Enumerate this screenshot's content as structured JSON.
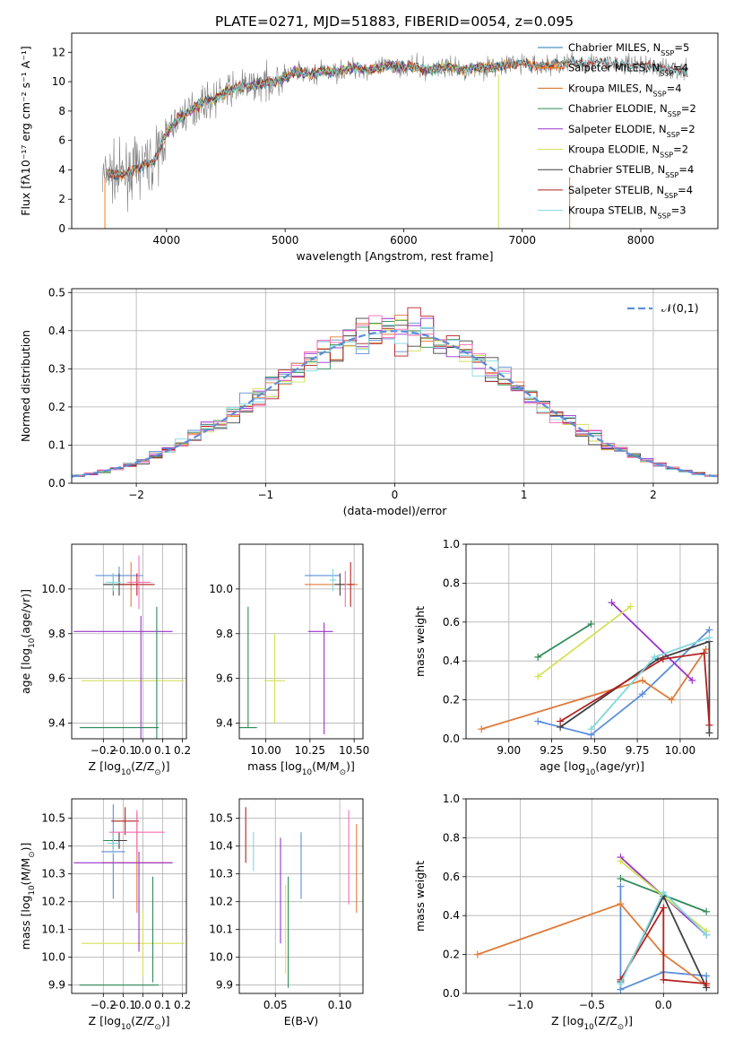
{
  "figure": {
    "title": "PLATE=0271, MJD=51883, FIBERID=0054, z=0.095"
  },
  "chart_data": [
    {
      "id": "spectrum",
      "type": "line",
      "xlabel": "wavelength [Angstrom, rest frame]",
      "ylabel": "Flux [fλ10⁻¹⁷ erg cm⁻² s⁻¹ A⁻¹]",
      "xlim": [
        3200,
        8650
      ],
      "ylim": [
        0,
        13.3
      ],
      "xticks": [
        4000,
        5000,
        6000,
        7000,
        8000
      ],
      "yticks": [
        0,
        2,
        4,
        6,
        8,
        10,
        12
      ],
      "grid": false,
      "legend_position": "right",
      "data_series": {
        "name": "",
        "color": "#808080",
        "x": [
          3460,
          3500,
          3600,
          3700,
          3800,
          3900,
          4000,
          4100,
          4200,
          4300,
          4400,
          4500,
          4600,
          4700,
          4800,
          4900,
          5000,
          5100,
          5200,
          5300,
          5400,
          5500,
          5600,
          5700,
          5800,
          5900,
          6000,
          6100,
          6200,
          6300,
          6400,
          6500,
          6600,
          6700,
          6800,
          6900,
          7000,
          7100,
          7200,
          7300,
          7400,
          7600,
          7800,
          8000,
          8200,
          8400
        ],
        "y": [
          3.4,
          3.8,
          3.6,
          3.9,
          4.3,
          4.6,
          6.5,
          7.5,
          8.0,
          8.6,
          8.8,
          9.3,
          9.6,
          9.7,
          9.9,
          10.0,
          10.3,
          10.7,
          10.5,
          10.7,
          10.6,
          10.8,
          11.0,
          10.8,
          10.9,
          11.1,
          11.0,
          11.0,
          10.8,
          10.9,
          11.0,
          10.8,
          10.9,
          11.0,
          11.0,
          11.2,
          11.3,
          11.1,
          11.1,
          11.2,
          11.3,
          11.3,
          11.2,
          11.1,
          10.9,
          10.7
        ]
      },
      "models": [
        {
          "name": "Chabrier MILES, N$_{SSP}$=5",
          "color": "#1f77b4",
          "x_range": [
            3500,
            7400
          ]
        },
        {
          "name": "Salpeter MILES, N$_{SSP}$=4",
          "color": "#ff7f0e",
          "x_range": [
            3500,
            7400
          ]
        },
        {
          "name": "Kroupa MILES, N$_{SSP}$=4",
          "color": "#d2691e",
          "x_range": [
            3500,
            7400
          ]
        },
        {
          "name": "Chabrier ELODIE, N$_{SSP}$=2",
          "color": "#2e8b57",
          "x_range": [
            3900,
            6800
          ]
        },
        {
          "name": "Salpeter ELODIE, N$_{SSP}$=2",
          "color": "#9932cc",
          "x_range": [
            3900,
            6800
          ]
        },
        {
          "name": "Kroupa ELODIE, N$_{SSP}$=2",
          "color": "#d4e157",
          "x_range": [
            3900,
            6800
          ]
        },
        {
          "name": "Chabrier STELIB, N$_{SSP}$=4",
          "color": "#404040",
          "x_range": [
            3500,
            8400
          ]
        },
        {
          "name": "Salpeter STELIB, N$_{SSP}$=4",
          "color": "#b22222",
          "x_range": [
            3500,
            8400
          ]
        },
        {
          "name": "Kroupa STELIB, N$_{SSP}$=3",
          "color": "#80d8e0",
          "x_range": [
            3500,
            8400
          ]
        }
      ]
    },
    {
      "id": "residuals",
      "type": "line",
      "xlabel": "(data-model)/error",
      "ylabel": "Normed distribution",
      "xlim": [
        -2.5,
        2.5
      ],
      "ylim": [
        0,
        0.51
      ],
      "xticks": [
        -2,
        -1,
        0,
        1,
        2
      ],
      "yticks": [
        0.0,
        0.1,
        0.2,
        0.3,
        0.4,
        0.5
      ],
      "grid": true,
      "legend": "$\\mathcal{N}(0,1)$",
      "legend_position": "top-right",
      "normal_color": "#5b8fd9",
      "bin_width": 0.1
    },
    {
      "id": "age_vs_Z",
      "type": "scatter",
      "xlabel": "Z [log$_{10}$(Z/Z$_\\odot$)]",
      "ylabel": "age  [log$_{10}$(age/yr)]",
      "xlim": [
        -0.36,
        0.22
      ],
      "ylim": [
        9.33,
        10.2
      ],
      "xticks": [
        -0.2,
        -0.1,
        0.0,
        0.1,
        0.2
      ],
      "yticks": [
        9.4,
        9.6,
        9.8,
        10.0
      ],
      "grid": true,
      "errorbars": [
        {
          "color": "#5b8fd9",
          "x": -0.12,
          "y": 10.06,
          "xerr": 0.12,
          "yerr": 0.04
        },
        {
          "color": "#e07b39",
          "x": -0.06,
          "y": 10.02,
          "xerr": 0.1,
          "yerr": 0.1
        },
        {
          "color": "#2e8b57",
          "x": -0.15,
          "y": 10.02,
          "xerr": 0.05,
          "yerr": 0.05
        },
        {
          "color": "#9932cc",
          "x": -0.1,
          "y": 9.81,
          "xerr": 0.25,
          "yerr": 0.0
        },
        {
          "color": "#d4e157",
          "x": -0.05,
          "y": 9.59,
          "xerr": 0.26,
          "yerr": 0.0
        },
        {
          "color": "#404040",
          "x": -0.12,
          "y": 10.02,
          "xerr": 0.08,
          "yerr": 0.05
        },
        {
          "color": "#b22222",
          "x": -0.03,
          "y": 10.02,
          "xerr": 0.09,
          "yerr": 0.05
        },
        {
          "color": "#80d8e0",
          "x": -0.15,
          "y": 10.03,
          "xerr": 0.04,
          "yerr": 0.04
        },
        {
          "color": "#2e8b57",
          "x": -0.12,
          "y": 9.38,
          "xerr": 0.2,
          "yerr": 0.0
        },
        {
          "color": "#ff69b4",
          "x": -0.02,
          "y": 10.03,
          "xerr": 0.06,
          "yerr": 0.12
        },
        {
          "color": "#2e8b57",
          "x": 0.07,
          "y": 9.6,
          "xerr": 0.0,
          "yerr": 0.32
        },
        {
          "color": "#9932cc",
          "x": -0.01,
          "y": 9.6,
          "xerr": 0.0,
          "yerr": 0.28
        }
      ]
    },
    {
      "id": "age_vs_mass",
      "type": "scatter",
      "xlabel": "mass [log$_{10}$(M/M$_\\odot$)]",
      "ylabel": "",
      "xlim": [
        9.85,
        10.55
      ],
      "ylim": [
        9.33,
        10.2
      ],
      "xticks": [
        10.0,
        10.25,
        10.5
      ],
      "yticks": [
        9.4,
        9.6,
        9.8,
        10.0
      ],
      "grid": true,
      "errorbars": [
        {
          "color": "#5b8fd9",
          "x": 10.32,
          "y": 10.06,
          "xerr": 0.1,
          "yerr": 0.0
        },
        {
          "color": "#e07b39",
          "x": 10.37,
          "y": 10.02,
          "xerr": 0.15,
          "yerr": 0.0
        },
        {
          "color": "#2e8b57",
          "x": 9.9,
          "y": 9.38,
          "xerr": 0.0,
          "yerr": 0.0
        },
        {
          "color": "#9932cc",
          "x": 10.31,
          "y": 9.81,
          "xerr": 0.07,
          "yerr": 0.0
        },
        {
          "color": "#d4e157",
          "x": 10.05,
          "y": 9.59,
          "xerr": 0.06,
          "yerr": 0.0
        },
        {
          "color": "#404040",
          "x": 10.42,
          "y": 10.02,
          "xerr": 0.03,
          "yerr": 0.05
        },
        {
          "color": "#b22222",
          "x": 10.48,
          "y": 10.02,
          "xerr": 0.02,
          "yerr": 0.1
        },
        {
          "color": "#80d8e0",
          "x": 10.38,
          "y": 10.04,
          "xerr": 0.02,
          "yerr": 0.05
        },
        {
          "color": "#ff69b4",
          "x": 10.45,
          "y": 10.0,
          "xerr": 0.0,
          "yerr": 0.08
        },
        {
          "color": "#2e8b57",
          "x": 9.9,
          "y": 9.65,
          "xerr": 0.0,
          "yerr": 0.27
        },
        {
          "color": "#d4e157",
          "x": 10.05,
          "y": 9.6,
          "xerr": 0.0,
          "yerr": 0.2
        },
        {
          "color": "#9932cc",
          "x": 10.33,
          "y": 9.6,
          "xerr": 0.0,
          "yerr": 0.25
        },
        {
          "color": "#2e8b57",
          "x": 9.9,
          "y": 9.38,
          "xerr": 0.05,
          "yerr": 0.0
        }
      ]
    },
    {
      "id": "weight_vs_age",
      "type": "line",
      "xlabel": "age  [log$_{10}$(age/yr)]",
      "ylabel": "mass weight",
      "xlim": [
        8.75,
        10.22
      ],
      "ylim": [
        0,
        1.0
      ],
      "xticks": [
        9.0,
        9.25,
        9.5,
        9.75,
        10.0
      ],
      "yticks": [
        0.0,
        0.2,
        0.4,
        0.6,
        0.8,
        1.0
      ],
      "grid": true,
      "series": [
        {
          "color": "#5b8fd9",
          "x": [
            9.17,
            9.48,
            9.78,
            10.17
          ],
          "y": [
            0.09,
            0.02,
            0.23,
            0.56
          ]
        },
        {
          "color": "#e07b39",
          "x": [
            8.84,
            9.78,
            9.95,
            10.15
          ],
          "y": [
            0.05,
            0.3,
            0.2,
            0.46
          ]
        },
        {
          "color": "#2e8b57",
          "x": [
            9.17,
            9.48
          ],
          "y": [
            0.42,
            0.59
          ]
        },
        {
          "color": "#9932cc",
          "x": [
            9.6,
            10.07
          ],
          "y": [
            0.7,
            0.3
          ]
        },
        {
          "color": "#d4e157",
          "x": [
            9.17,
            9.71
          ],
          "y": [
            0.32,
            0.68
          ]
        },
        {
          "color": "#404040",
          "x": [
            9.3,
            9.87,
            10.17,
            10.17
          ],
          "y": [
            0.06,
            0.41,
            0.5,
            0.03
          ]
        },
        {
          "color": "#b22222",
          "x": [
            9.3,
            9.9,
            10.14,
            10.17
          ],
          "y": [
            0.09,
            0.41,
            0.44,
            0.07
          ]
        },
        {
          "color": "#80d8e0",
          "x": [
            9.48,
            9.85,
            10.17
          ],
          "y": [
            0.05,
            0.42,
            0.52
          ]
        }
      ]
    },
    {
      "id": "mass_vs_Z",
      "type": "scatter",
      "xlabel": "Z [log$_{10}$(Z/Z$_\\odot$)]",
      "ylabel": "mass [log$_{10}$(M/M$_\\odot$)]",
      "xlim": [
        -0.36,
        0.22
      ],
      "ylim": [
        9.87,
        10.57
      ],
      "xticks": [
        -0.2,
        -0.1,
        0.0,
        0.1,
        0.2
      ],
      "yticks": [
        9.9,
        10.0,
        10.1,
        10.2,
        10.3,
        10.4,
        10.5
      ],
      "grid": true,
      "errorbars": [
        {
          "color": "#5b8fd9",
          "x": -0.15,
          "y": 10.38,
          "xerr": 0.06,
          "yerr": 0.17
        },
        {
          "color": "#e07b39",
          "x": -0.03,
          "y": 10.34,
          "xerr": 0.18,
          "yerr": 0.18
        },
        {
          "color": "#2e8b57",
          "x": -0.15,
          "y": 10.42,
          "xerr": 0.05,
          "yerr": 0.03
        },
        {
          "color": "#9932cc",
          "x": -0.1,
          "y": 10.34,
          "xerr": 0.25,
          "yerr": 0.0
        },
        {
          "color": "#d4e157",
          "x": -0.05,
          "y": 10.05,
          "xerr": 0.26,
          "yerr": 0.0
        },
        {
          "color": "#404040",
          "x": -0.12,
          "y": 10.42,
          "xerr": 0.04,
          "yerr": 0.03
        },
        {
          "color": "#b22222",
          "x": -0.09,
          "y": 10.49,
          "xerr": 0.07,
          "yerr": 0.05
        },
        {
          "color": "#80d8e0",
          "x": -0.15,
          "y": 10.41,
          "xerr": 0.03,
          "yerr": 0.04
        },
        {
          "color": "#ff69b4",
          "x": -0.03,
          "y": 10.45,
          "xerr": 0.14,
          "yerr": 0.08
        },
        {
          "color": "#2e8b57",
          "x": -0.12,
          "y": 9.9,
          "xerr": 0.2,
          "yerr": 0.0
        },
        {
          "color": "#2e8b57",
          "x": 0.05,
          "y": 10.1,
          "xerr": 0.0,
          "yerr": 0.19
        },
        {
          "color": "#d4e157",
          "x": 0.0,
          "y": 10.05,
          "xerr": 0.0,
          "yerr": 0.12
        },
        {
          "color": "#9932cc",
          "x": -0.02,
          "y": 10.2,
          "xerr": 0.0,
          "yerr": 0.18
        }
      ]
    },
    {
      "id": "mass_vs_ebv",
      "type": "scatter",
      "xlabel": "E(B-V)",
      "ylabel": "",
      "xlim": [
        0.022,
        0.118
      ],
      "ylim": [
        9.87,
        10.57
      ],
      "xticks": [
        0.05,
        0.1
      ],
      "yticks": [
        9.9,
        10.0,
        10.1,
        10.2,
        10.3,
        10.4,
        10.5
      ],
      "grid": true,
      "errorbars": [
        {
          "color": "#b22222",
          "x": 0.027,
          "y": 10.44,
          "xerr": 0.0,
          "yerr": 0.1
        },
        {
          "color": "#80d8e0",
          "x": 0.033,
          "y": 10.38,
          "xerr": 0.0,
          "yerr": 0.07
        },
        {
          "color": "#9932cc",
          "x": 0.054,
          "y": 10.24,
          "xerr": 0.0,
          "yerr": 0.19
        },
        {
          "color": "#d4e157",
          "x": 0.058,
          "y": 10.1,
          "xerr": 0.0,
          "yerr": 0.16
        },
        {
          "color": "#2e8b57",
          "x": 0.06,
          "y": 10.09,
          "xerr": 0.0,
          "yerr": 0.2
        },
        {
          "color": "#5b8fd9",
          "x": 0.07,
          "y": 10.33,
          "xerr": 0.0,
          "yerr": 0.12
        },
        {
          "color": "#ff69b4",
          "x": 0.107,
          "y": 10.36,
          "xerr": 0.0,
          "yerr": 0.17
        },
        {
          "color": "#e07b39",
          "x": 0.113,
          "y": 10.32,
          "xerr": 0.0,
          "yerr": 0.16
        }
      ]
    },
    {
      "id": "weight_vs_Z",
      "type": "line",
      "xlabel": "Z [log$_{10}$(Z/Z$_\\odot$)]",
      "ylabel": "mass weight",
      "xlim": [
        -1.38,
        0.38
      ],
      "ylim": [
        0,
        1.0
      ],
      "xticks": [
        -1.0,
        -0.5,
        0.0
      ],
      "yticks": [
        0.0,
        0.2,
        0.4,
        0.6,
        0.8,
        1.0
      ],
      "grid": true,
      "series": [
        {
          "color": "#5b8fd9",
          "x": [
            -0.3,
            -0.3,
            0.0,
            0.3,
            0.3
          ],
          "y": [
            0.55,
            0.02,
            0.11,
            0.09,
            0.03
          ]
        },
        {
          "color": "#e07b39",
          "x": [
            -1.3,
            -0.3,
            0.0,
            0.3
          ],
          "y": [
            0.2,
            0.46,
            0.2,
            0.04
          ]
        },
        {
          "color": "#2e8b57",
          "x": [
            -0.3,
            0.3
          ],
          "y": [
            0.59,
            0.42
          ]
        },
        {
          "color": "#9932cc",
          "x": [
            -0.3,
            0.3
          ],
          "y": [
            0.7,
            0.3
          ]
        },
        {
          "color": "#d4e157",
          "x": [
            -0.3,
            0.3
          ],
          "y": [
            0.68,
            0.32
          ]
        },
        {
          "color": "#404040",
          "x": [
            -0.3,
            0.0,
            0.3
          ],
          "y": [
            0.06,
            0.5,
            0.03
          ]
        },
        {
          "color": "#b22222",
          "x": [
            -0.3,
            0.0,
            0.0,
            0.3
          ],
          "y": [
            0.07,
            0.44,
            0.07,
            0.05
          ]
        },
        {
          "color": "#80d8e0",
          "x": [
            -0.3,
            0.0,
            0.3
          ],
          "y": [
            0.05,
            0.52,
            0.3
          ]
        }
      ]
    }
  ]
}
